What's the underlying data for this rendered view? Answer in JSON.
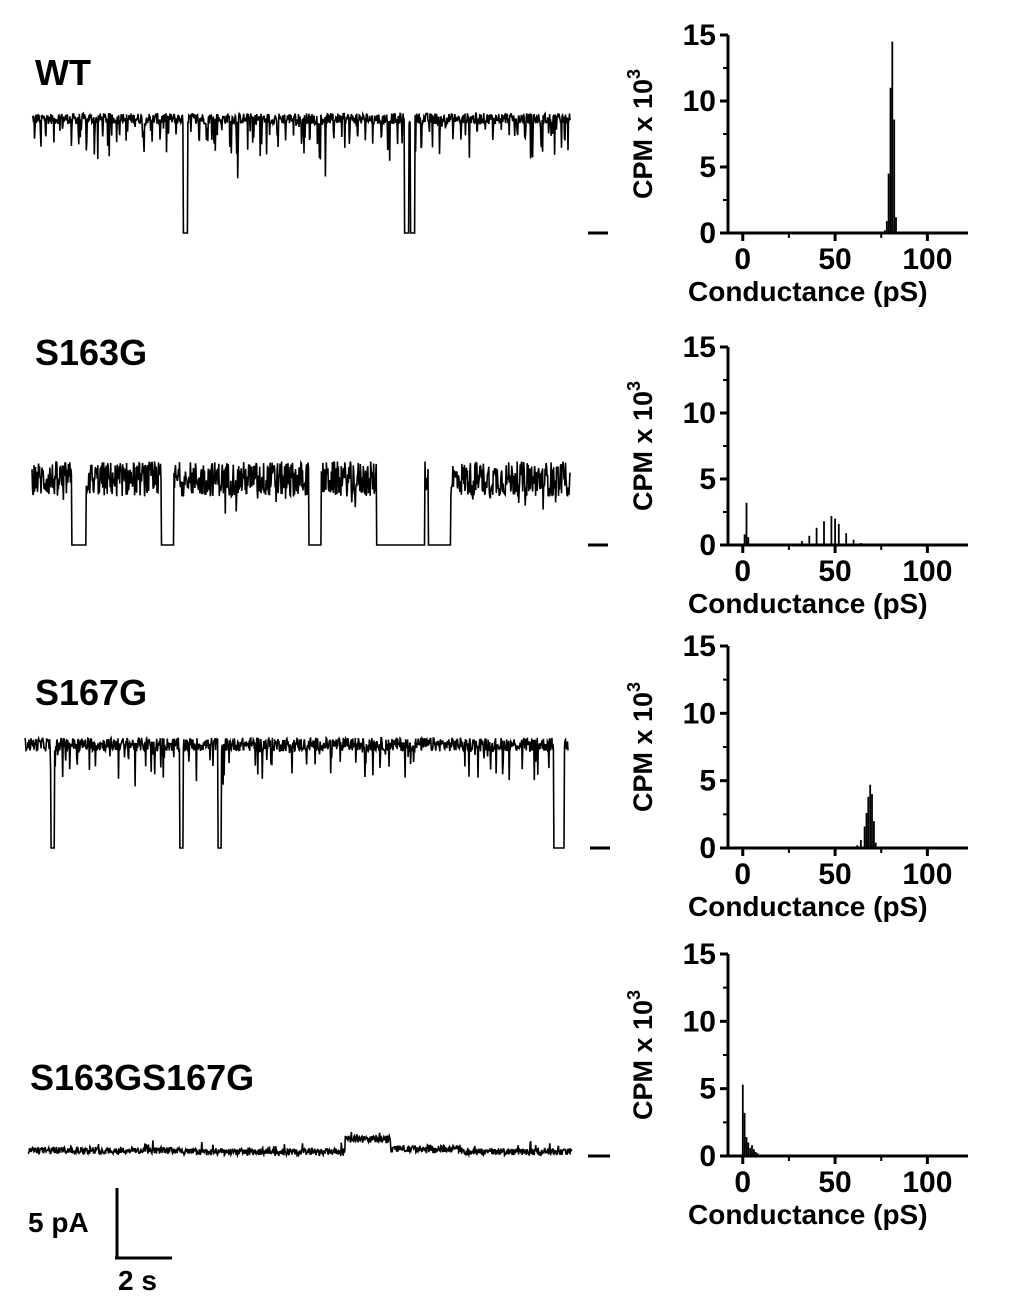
{
  "figure": {
    "scale_bar": {
      "current_label": "5 pA",
      "time_label": "2 s"
    }
  },
  "chart_data": [
    {
      "type": "line",
      "title": "WT",
      "description_hint": "single-channel current trace",
      "baseline": 0,
      "open_level": 5.2,
      "noise": 0.25,
      "flickers": [
        3,
        9,
        14,
        22,
        31,
        40,
        47,
        55,
        63,
        71,
        80,
        88,
        96,
        104,
        112,
        121,
        129,
        137,
        145,
        152,
        160,
        168,
        176,
        183,
        191,
        199,
        207,
        215,
        223,
        231,
        239,
        247,
        255,
        263,
        271,
        279,
        287,
        295,
        303,
        311,
        319,
        327,
        335,
        343,
        351,
        359,
        367,
        375,
        383,
        391,
        399,
        407,
        415,
        423,
        431,
        439,
        447,
        455,
        463,
        471,
        479,
        487,
        495,
        503,
        511,
        519,
        527,
        535
      ],
      "closures": [
        [
          152,
          156
        ],
        [
          374,
          378
        ],
        [
          380,
          384
        ]
      ],
      "xlim": [
        0,
        540
      ]
    },
    {
      "type": "line",
      "title": "S163G",
      "description_hint": "single-channel current trace",
      "baseline": 0,
      "open_level": 3.0,
      "noise": 0.8,
      "closures": [
        [
          40,
          54
        ],
        [
          130,
          142
        ],
        [
          278,
          290
        ],
        [
          346,
          394
        ],
        [
          398,
          420
        ]
      ],
      "xlim": [
        0,
        540
      ]
    },
    {
      "type": "line",
      "title": "S167G",
      "description_hint": "single-channel current trace",
      "baseline": 0,
      "open_level": 4.5,
      "noise": 0.3,
      "closures": [
        [
          26,
          29
        ],
        [
          154,
          157
        ],
        [
          192,
          195
        ],
        [
          526,
          536
        ]
      ],
      "xlim": [
        0,
        540
      ]
    },
    {
      "type": "line",
      "title": "S163GS167G",
      "description_hint": "single-channel current trace",
      "baseline": 0,
      "open_level": 0.3,
      "noise": 0.25,
      "bursts": [
        [
          0,
          150,
          0.4
        ],
        [
          315,
          360,
          1.2
        ],
        [
          360,
          430,
          0.5
        ]
      ],
      "xlim": [
        0,
        540
      ]
    },
    {
      "type": "bar",
      "xlabel": "Conductance (pS)",
      "ylabel": "CPM x 10",
      "ylabel_superscript": "3",
      "xlim": [
        -8,
        122
      ],
      "ylim": [
        0,
        15
      ],
      "xticks": [
        0,
        50,
        100
      ],
      "yticks": [
        0,
        5,
        10,
        15
      ],
      "x": [
        77,
        78,
        79,
        80,
        81,
        82,
        83,
        84
      ],
      "values": [
        0.2,
        0.9,
        4.5,
        11.0,
        14.5,
        8.6,
        1.2,
        0.1
      ]
    },
    {
      "type": "bar",
      "xlabel": "Conductance (pS)",
      "ylabel": "CPM x 10",
      "ylabel_superscript": "3",
      "xlim": [
        -8,
        122
      ],
      "ylim": [
        0,
        15
      ],
      "xticks": [
        0,
        50,
        100
      ],
      "yticks": [
        0,
        5,
        10,
        15
      ],
      "x": [
        1,
        2,
        3,
        28,
        32,
        36,
        40,
        44,
        48,
        50,
        52,
        56,
        60,
        64,
        68
      ],
      "values": [
        0.8,
        3.2,
        0.6,
        0.1,
        0.3,
        0.7,
        1.3,
        1.8,
        2.2,
        2.0,
        1.6,
        0.9,
        0.4,
        0.15,
        0.05
      ]
    },
    {
      "type": "bar",
      "xlabel": "Conductance (pS)",
      "ylabel": "CPM x 10",
      "ylabel_superscript": "3",
      "xlim": [
        -8,
        122
      ],
      "ylim": [
        0,
        15
      ],
      "xticks": [
        0,
        50,
        100
      ],
      "yticks": [
        0,
        5,
        10,
        15
      ],
      "x": [
        62,
        64,
        66,
        67,
        68,
        69,
        70,
        71,
        72
      ],
      "values": [
        0.2,
        0.6,
        1.6,
        2.6,
        3.8,
        4.7,
        4.0,
        2.0,
        0.4
      ]
    },
    {
      "type": "bar",
      "xlabel": "Conductance (pS)",
      "ylabel": "CPM x 10",
      "ylabel_superscript": "3",
      "xlim": [
        -8,
        122
      ],
      "ylim": [
        0,
        15
      ],
      "xticks": [
        0,
        50,
        100
      ],
      "yticks": [
        0,
        5,
        10,
        15
      ],
      "x": [
        0,
        1,
        2,
        3,
        4,
        5,
        6,
        7,
        8
      ],
      "values": [
        5.3,
        3.2,
        1.4,
        1.0,
        0.6,
        0.8,
        0.5,
        0.3,
        0.2
      ]
    }
  ]
}
